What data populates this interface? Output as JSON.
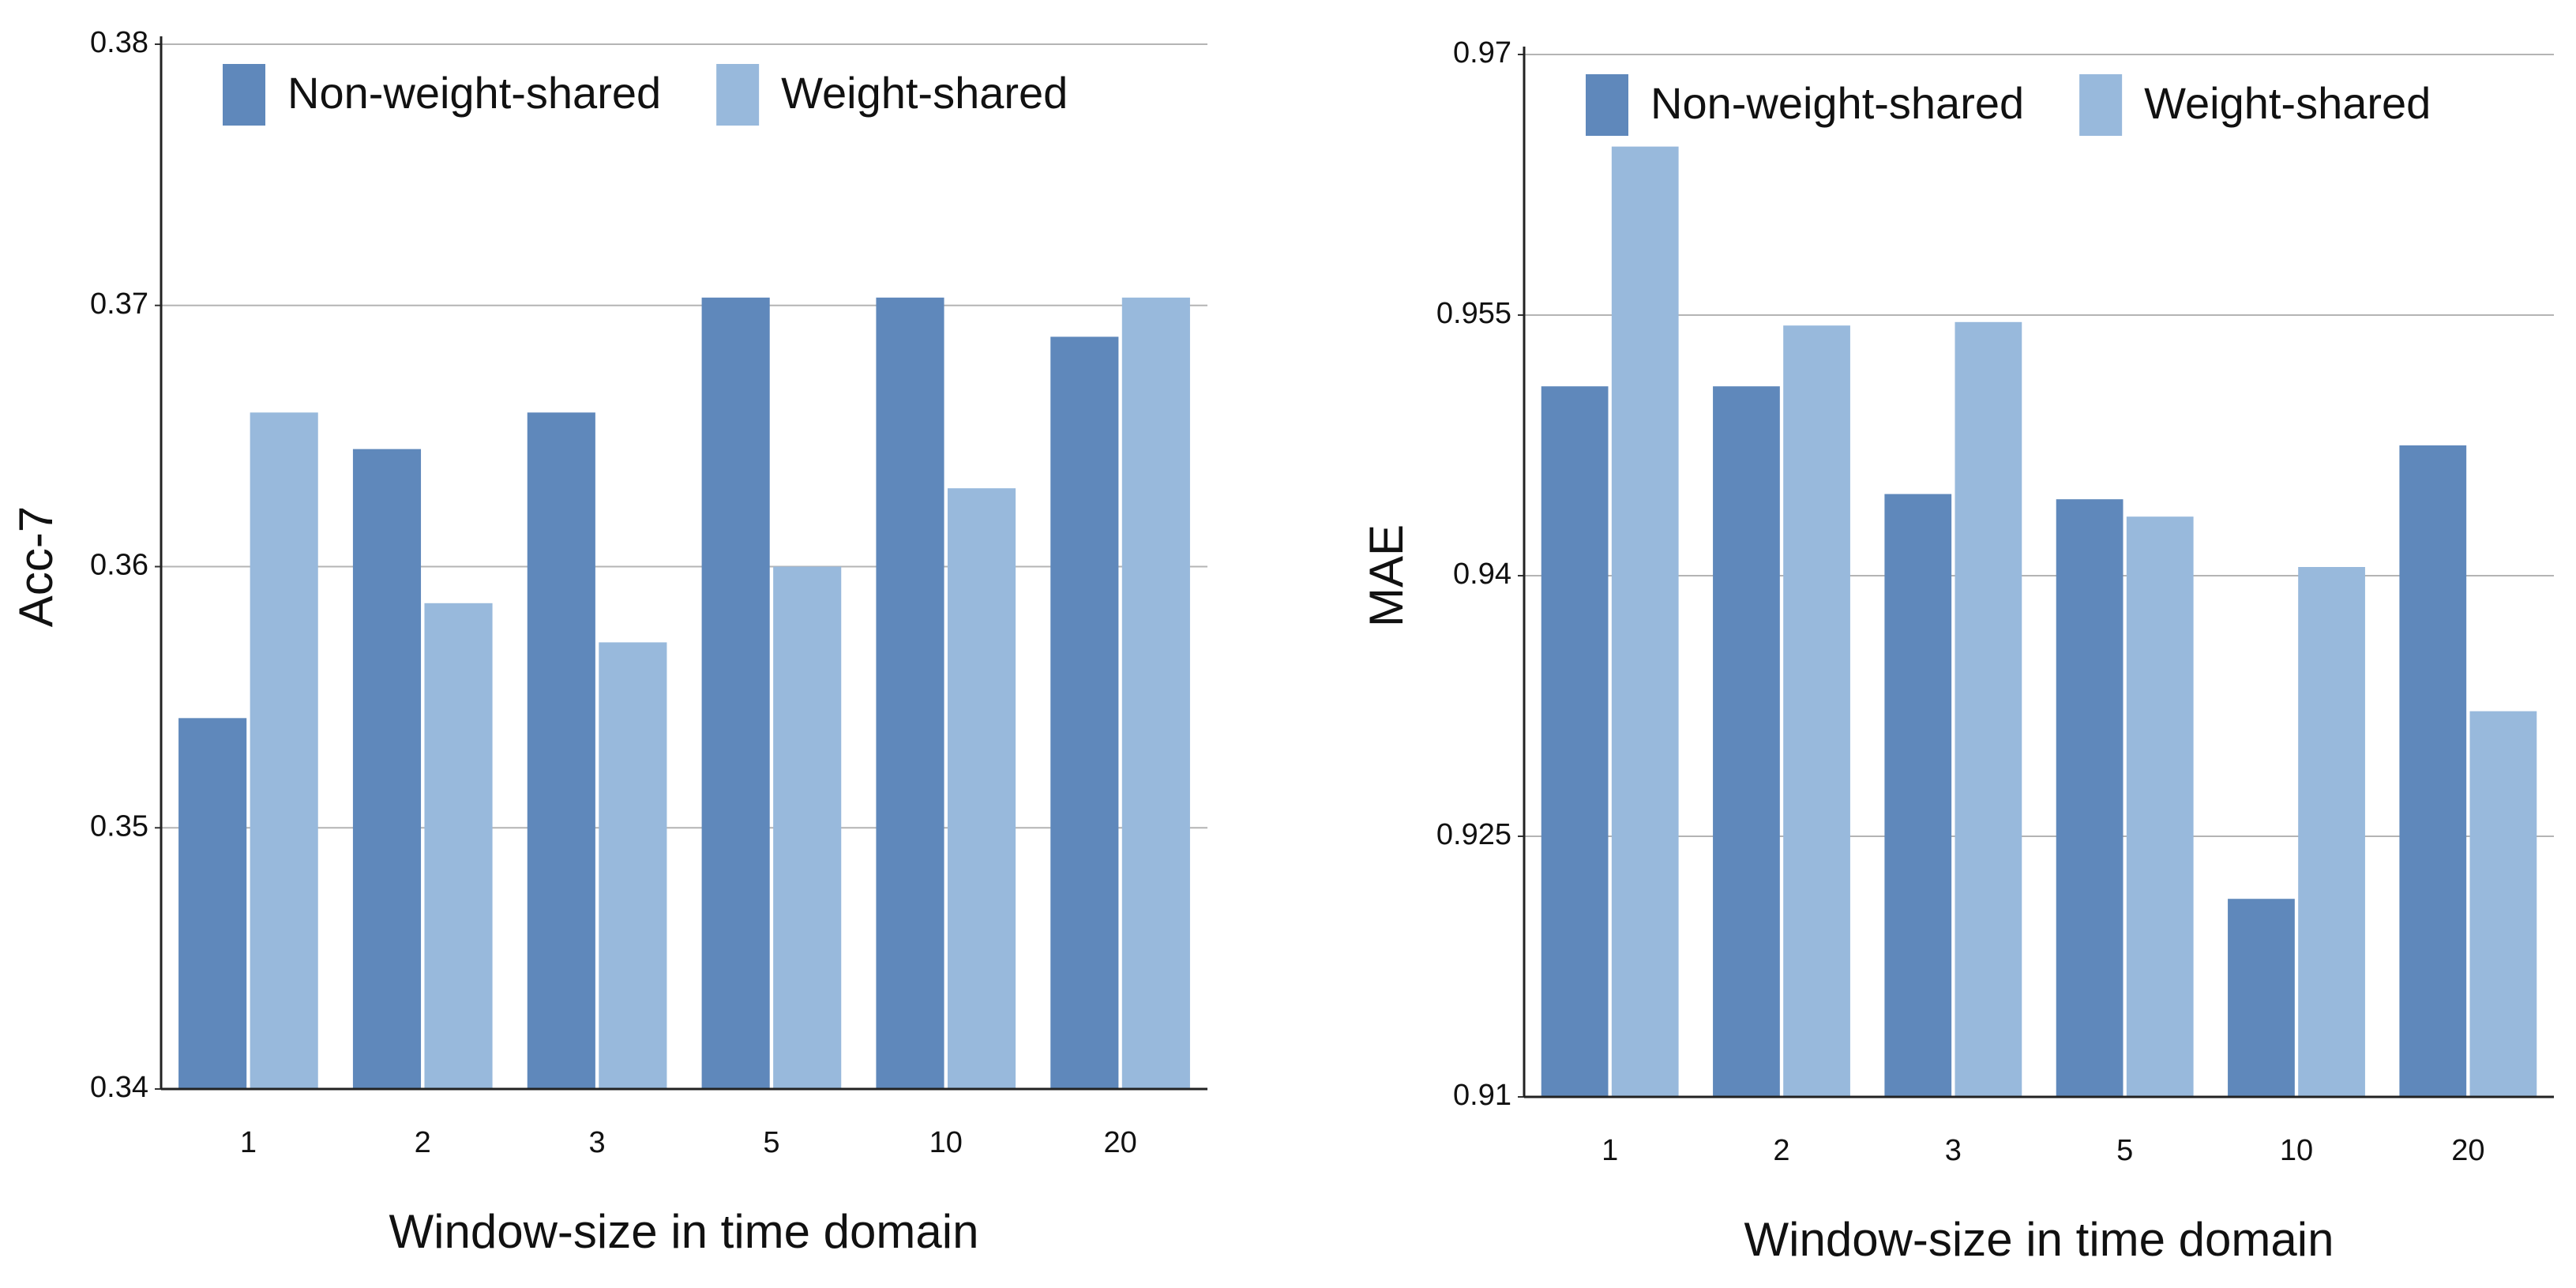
{
  "chart_data": [
    {
      "type": "bar",
      "xlabel": "Window-size in time domain",
      "ylabel": "Acc-7",
      "categories": [
        "1",
        "2",
        "3",
        "5",
        "10",
        "20"
      ],
      "series": [
        {
          "name": "Non-weight-shared",
          "color": "#5f88bb",
          "values": [
            0.3542,
            0.3645,
            0.3659,
            0.3703,
            0.3703,
            0.3688
          ]
        },
        {
          "name": "Weight-shared",
          "color": "#98b9dc",
          "values": [
            0.3659,
            0.3586,
            0.3571,
            0.36,
            0.363,
            0.3703
          ]
        }
      ],
      "ylim": [
        0.34,
        0.38
      ],
      "yticks": [
        0.34,
        0.35,
        0.36,
        0.37,
        0.38
      ],
      "grid": true,
      "legend": "top"
    },
    {
      "type": "bar",
      "xlabel": "Window-size in time domain",
      "ylabel": "MAE",
      "categories": [
        "1",
        "2",
        "3",
        "5",
        "10",
        "20"
      ],
      "series": [
        {
          "name": "Non-weight-shared",
          "color": "#5f88bb",
          "values": [
            0.9509,
            0.9509,
            0.9447,
            0.9444,
            0.9214,
            0.9475
          ]
        },
        {
          "name": "Weight-shared",
          "color": "#98b9dc",
          "values": [
            0.9647,
            0.9544,
            0.9546,
            0.9434,
            0.9405,
            0.9322
          ]
        }
      ],
      "ylim": [
        0.91,
        0.97
      ],
      "yticks": [
        0.91,
        0.925,
        0.94,
        0.955,
        0.97
      ],
      "grid": true,
      "legend": "top"
    }
  ]
}
